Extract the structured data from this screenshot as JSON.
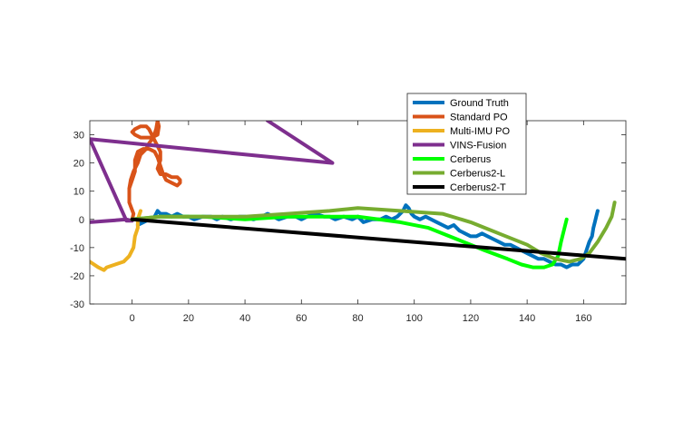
{
  "chart_data": {
    "type": "line",
    "title": "",
    "xlabel": "",
    "ylabel": "",
    "xlim": [
      -15,
      175
    ],
    "ylim": [
      -30,
      35
    ],
    "xticks": [
      0,
      20,
      40,
      60,
      80,
      100,
      120,
      140,
      160
    ],
    "yticks": [
      -30,
      -20,
      -10,
      0,
      10,
      20,
      30
    ],
    "grid": false,
    "legend_position": "top, partly above the plot area",
    "series": [
      {
        "name": "Ground Truth",
        "color": "#0072BD",
        "points": [
          [
            2,
            -2
          ],
          [
            4,
            -1
          ],
          [
            6,
            0
          ],
          [
            8,
            1
          ],
          [
            9,
            3
          ],
          [
            10,
            2
          ],
          [
            12,
            2
          ],
          [
            14,
            1
          ],
          [
            16,
            2
          ],
          [
            18,
            1
          ],
          [
            20,
            1
          ],
          [
            22,
            0
          ],
          [
            25,
            1
          ],
          [
            28,
            1
          ],
          [
            30,
            0
          ],
          [
            32,
            1
          ],
          [
            35,
            0
          ],
          [
            38,
            1
          ],
          [
            40,
            1
          ],
          [
            43,
            0
          ],
          [
            46,
            1
          ],
          [
            48,
            2
          ],
          [
            50,
            1
          ],
          [
            52,
            0
          ],
          [
            55,
            1
          ],
          [
            58,
            1
          ],
          [
            60,
            0
          ],
          [
            62,
            1
          ],
          [
            65,
            2
          ],
          [
            68,
            1
          ],
          [
            70,
            1
          ],
          [
            72,
            0
          ],
          [
            75,
            1
          ],
          [
            78,
            0
          ],
          [
            80,
            1
          ],
          [
            82,
            -1
          ],
          [
            85,
            0
          ],
          [
            88,
            0
          ],
          [
            90,
            1
          ],
          [
            92,
            0
          ],
          [
            94,
            1
          ],
          [
            96,
            3
          ],
          [
            97,
            5
          ],
          [
            98,
            4
          ],
          [
            99,
            2
          ],
          [
            100,
            1
          ],
          [
            102,
            0
          ],
          [
            104,
            1
          ],
          [
            106,
            0
          ],
          [
            108,
            -1
          ],
          [
            110,
            -2
          ],
          [
            112,
            -3
          ],
          [
            114,
            -2
          ],
          [
            116,
            -4
          ],
          [
            118,
            -5
          ],
          [
            120,
            -6
          ],
          [
            122,
            -6
          ],
          [
            124,
            -5
          ],
          [
            126,
            -6
          ],
          [
            128,
            -7
          ],
          [
            130,
            -8
          ],
          [
            132,
            -9
          ],
          [
            134,
            -9
          ],
          [
            136,
            -10
          ],
          [
            138,
            -11
          ],
          [
            140,
            -12
          ],
          [
            142,
            -13
          ],
          [
            144,
            -14
          ],
          [
            146,
            -14
          ],
          [
            148,
            -15
          ],
          [
            150,
            -16
          ],
          [
            152,
            -16
          ],
          [
            154,
            -17
          ],
          [
            156,
            -16
          ],
          [
            158,
            -16
          ],
          [
            160,
            -14
          ],
          [
            161,
            -11
          ],
          [
            162,
            -8
          ],
          [
            163,
            -6
          ],
          [
            163.5,
            -3
          ],
          [
            164,
            -1
          ],
          [
            164.5,
            1
          ],
          [
            165,
            3
          ]
        ]
      },
      {
        "name": "Standard PO",
        "color": "#D95319",
        "points": [
          [
            0,
            0
          ],
          [
            0.5,
            2
          ],
          [
            -1,
            6
          ],
          [
            -1,
            11
          ],
          [
            -0.5,
            14
          ],
          [
            0.5,
            17
          ],
          [
            2,
            20
          ],
          [
            3,
            23
          ],
          [
            5,
            25
          ],
          [
            6,
            27
          ],
          [
            7.5,
            29
          ],
          [
            8.5,
            32
          ],
          [
            9,
            35
          ],
          [
            9.5,
            33
          ],
          [
            9,
            30
          ],
          [
            7,
            29
          ],
          [
            5,
            29
          ],
          [
            3,
            29
          ],
          [
            1,
            30
          ],
          [
            0,
            31
          ],
          [
            1,
            32
          ],
          [
            3,
            33
          ],
          [
            5,
            33
          ],
          [
            6,
            32
          ],
          [
            7,
            30
          ],
          [
            8,
            28
          ],
          [
            9,
            26
          ],
          [
            10,
            24
          ],
          [
            10,
            21
          ],
          [
            9,
            18
          ],
          [
            10,
            16
          ],
          [
            12,
            16
          ],
          [
            14,
            15
          ],
          [
            16,
            15
          ],
          [
            17,
            14
          ],
          [
            17,
            13
          ],
          [
            16,
            12
          ],
          [
            14,
            13
          ],
          [
            12,
            14
          ],
          [
            11,
            16
          ],
          [
            10,
            19
          ],
          [
            9,
            22
          ],
          [
            8,
            24
          ],
          [
            6,
            25
          ],
          [
            4,
            25
          ],
          [
            2,
            24
          ],
          [
            1,
            21
          ],
          [
            1,
            17
          ],
          [
            0,
            14
          ],
          [
            -1,
            11
          ]
        ]
      },
      {
        "name": "Multi-IMU PO",
        "color": "#EDB120",
        "points": [
          [
            3,
            3
          ],
          [
            2,
            0
          ],
          [
            2,
            -3
          ],
          [
            1,
            -6
          ],
          [
            0.5,
            -10
          ],
          [
            -1,
            -13
          ],
          [
            -3,
            -15
          ],
          [
            -6,
            -16
          ],
          [
            -9,
            -17
          ],
          [
            -10,
            -18
          ],
          [
            -12,
            -17
          ],
          [
            -15,
            -15
          ]
        ]
      },
      {
        "name": "VINS-Fusion",
        "color": "#7E2F8E",
        "points": [
          [
            -15,
            -1
          ],
          [
            -8,
            -0.5
          ],
          [
            -2,
            0
          ],
          [
            0,
            -0.5
          ],
          [
            -2,
            -0.5
          ],
          [
            -15,
            28.5
          ],
          [
            10,
            26
          ],
          [
            40,
            23
          ],
          [
            71,
            20
          ],
          [
            48,
            35
          ]
        ]
      },
      {
        "name": "Cerberus",
        "color": "#00FF00",
        "points": [
          [
            0,
            0
          ],
          [
            10,
            1
          ],
          [
            25,
            1
          ],
          [
            40,
            0
          ],
          [
            55,
            1
          ],
          [
            70,
            1
          ],
          [
            80,
            1
          ],
          [
            95,
            -1
          ],
          [
            105,
            -3
          ],
          [
            115,
            -7
          ],
          [
            125,
            -11
          ],
          [
            133,
            -14
          ],
          [
            138,
            -16
          ],
          [
            142,
            -17
          ],
          [
            146,
            -17
          ],
          [
            149,
            -16
          ],
          [
            151,
            -13
          ],
          [
            152,
            -8
          ],
          [
            153,
            -4
          ],
          [
            154,
            0
          ]
        ]
      },
      {
        "name": "Cerberus2-L",
        "color": "#77AC30",
        "points": [
          [
            0,
            0
          ],
          [
            10,
            1
          ],
          [
            25,
            1
          ],
          [
            40,
            1
          ],
          [
            55,
            2
          ],
          [
            70,
            3
          ],
          [
            80,
            4
          ],
          [
            95,
            3
          ],
          [
            110,
            2
          ],
          [
            120,
            -1
          ],
          [
            130,
            -5
          ],
          [
            140,
            -9
          ],
          [
            145,
            -12
          ],
          [
            150,
            -14
          ],
          [
            155,
            -15
          ],
          [
            159,
            -14
          ],
          [
            162,
            -12
          ],
          [
            165,
            -8
          ],
          [
            168,
            -3
          ],
          [
            170,
            1
          ],
          [
            171,
            6
          ]
        ]
      },
      {
        "name": "Cerberus2-T",
        "color": "#000000",
        "points": [
          [
            0,
            0
          ],
          [
            175,
            -14
          ]
        ]
      }
    ]
  }
}
